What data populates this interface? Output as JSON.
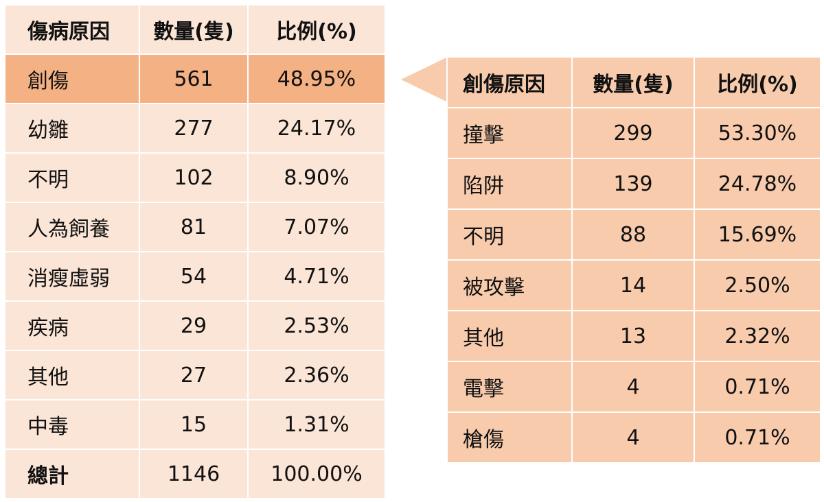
{
  "left_table": {
    "headers": [
      "傷病原因",
      "數量(隻)",
      "比例(%)"
    ],
    "rows": [
      {
        "cause": "創傷",
        "count": "561",
        "percent": "48.95%"
      },
      {
        "cause": "幼雛",
        "count": "277",
        "percent": "24.17%"
      },
      {
        "cause": "不明",
        "count": "102",
        "percent": "8.90%"
      },
      {
        "cause": "人為飼養",
        "count": "81",
        "percent": "7.07%"
      },
      {
        "cause": "消瘦虛弱",
        "count": "54",
        "percent": "4.71%"
      },
      {
        "cause": "疾病",
        "count": "29",
        "percent": "2.53%"
      },
      {
        "cause": "其他",
        "count": "27",
        "percent": "2.36%"
      },
      {
        "cause": "中毒",
        "count": "15",
        "percent": "1.31%"
      },
      {
        "cause": "總計",
        "count": "1146",
        "percent": "100.00%"
      }
    ]
  },
  "right_table": {
    "headers": [
      "創傷原因",
      "數量(隻)",
      "比例(%)"
    ],
    "rows": [
      {
        "cause": "撞擊",
        "count": "299",
        "percent": "53.30%"
      },
      {
        "cause": "陷阱",
        "count": "139",
        "percent": "24.78%"
      },
      {
        "cause": "不明",
        "count": "88",
        "percent": "15.69%"
      },
      {
        "cause": "被攻擊",
        "count": "14",
        "percent": "2.50%"
      },
      {
        "cause": "其他",
        "count": "13",
        "percent": "2.32%"
      },
      {
        "cause": "電擊",
        "count": "4",
        "percent": "0.71%"
      },
      {
        "cause": "槍傷",
        "count": "4",
        "percent": "0.71%"
      }
    ]
  },
  "colors": {
    "light_peach": "#fbe5d6",
    "highlight_orange": "#f4b183",
    "medium_peach": "#f8cbad"
  }
}
